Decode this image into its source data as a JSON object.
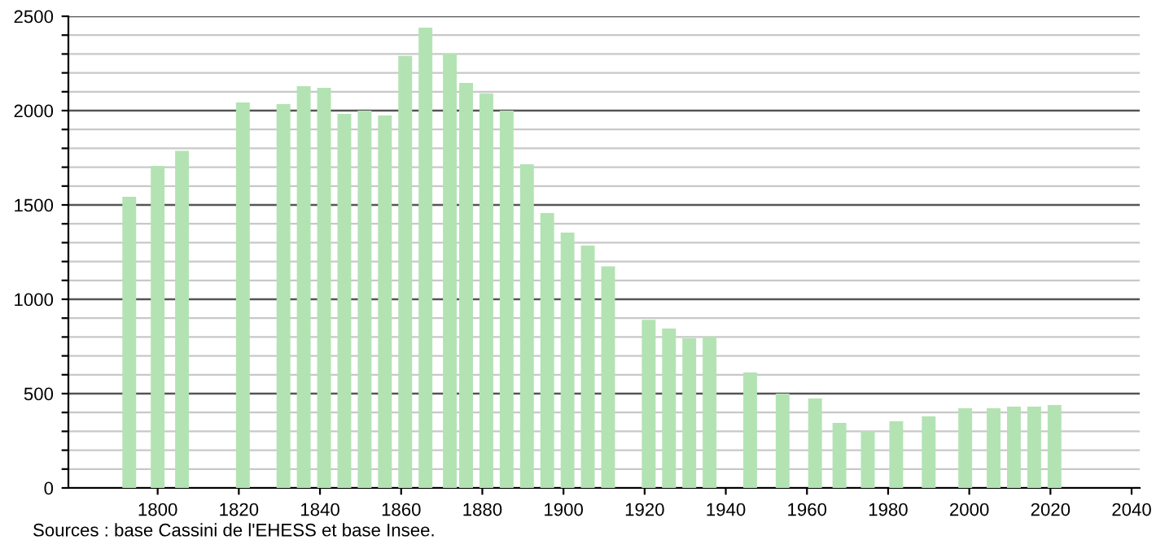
{
  "chart_data": {
    "type": "bar",
    "x": [
      1793,
      1800,
      1806,
      1821,
      1831,
      1836,
      1841,
      1846,
      1851,
      1856,
      1861,
      1866,
      1872,
      1876,
      1881,
      1886,
      1891,
      1896,
      1901,
      1906,
      1911,
      1921,
      1926,
      1931,
      1936,
      1946,
      1954,
      1962,
      1968,
      1975,
      1982,
      1990,
      1999,
      2006,
      2011,
      2016,
      2021
    ],
    "values": [
      1543,
      1707,
      1787,
      2043,
      2034,
      2129,
      2121,
      1983,
      2000,
      1974,
      2290,
      2440,
      2302,
      2147,
      2092,
      2000,
      1716,
      1457,
      1353,
      1284,
      1175,
      891,
      845,
      793,
      802,
      612,
      500,
      474,
      345,
      302,
      353,
      379,
      422,
      422,
      431,
      431,
      440
    ],
    "color": "#b3e3b3",
    "xlim": [
      1778,
      2042
    ],
    "xticks": [
      1800,
      1820,
      1840,
      1860,
      1880,
      1900,
      1920,
      1940,
      1960,
      1980,
      2000,
      2020,
      2040
    ],
    "ylim": [
      0,
      2500
    ],
    "yticks": [
      0,
      {
        "value": 100,
        "label": null
      },
      {
        "value": 200,
        "label": null
      },
      {
        "value": 300,
        "label": null
      },
      {
        "value": 400,
        "label": null
      },
      500,
      {
        "value": 600,
        "label": null
      },
      {
        "value": 700,
        "label": null
      },
      {
        "value": 800,
        "label": null
      },
      {
        "value": 900,
        "label": null
      },
      1000,
      {
        "value": 1100,
        "label": null
      },
      {
        "value": 1200,
        "label": null
      },
      {
        "value": 1300,
        "label": null
      },
      {
        "value": 1400,
        "label": null
      },
      1500,
      {
        "value": 1600,
        "label": null
      },
      {
        "value": 1700,
        "label": null
      },
      {
        "value": 1800,
        "label": null
      },
      {
        "value": 1900,
        "label": null
      },
      2000,
      {
        "value": 2100,
        "label": null
      },
      {
        "value": 2200,
        "label": null
      },
      {
        "value": 2300,
        "label": null
      },
      {
        "value": 2400,
        "label": null
      },
      2500
    ],
    "grid": "y",
    "annotations": [
      "Sources : base Cassini de l'EHESS et base Insee."
    ]
  }
}
